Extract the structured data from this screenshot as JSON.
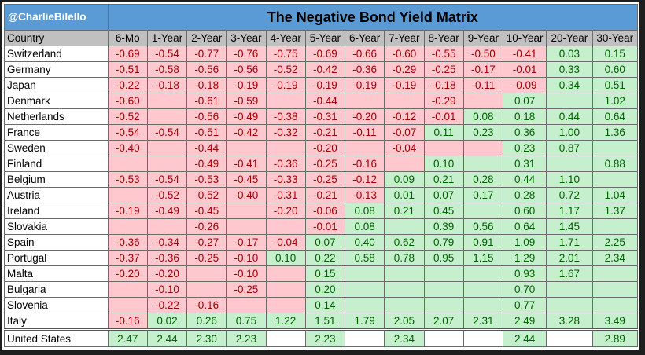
{
  "handle": "@CharlieBilello",
  "title": "The Negative Bond Yield Matrix",
  "header": [
    "Country",
    "6-Mo",
    "1-Year",
    "2-Year",
    "3-Year",
    "4-Year",
    "5-Year",
    "6-Year",
    "7-Year",
    "8-Year",
    "9-Year",
    "10-Year",
    "20-Year",
    "30-Year"
  ],
  "colors": {
    "negative_fill": "#ffc7ce",
    "negative_text": "#9c0006",
    "positive_fill": "#c6efce",
    "positive_text": "#006100",
    "title_bar": "#5b9bd5",
    "header_fill": "#c0c0c0"
  },
  "rows": [
    {
      "country": "Switzerland",
      "values": [
        -0.69,
        -0.54,
        -0.77,
        -0.76,
        -0.75,
        -0.69,
        -0.66,
        -0.6,
        -0.55,
        -0.5,
        -0.41,
        0.03,
        0.15
      ]
    },
    {
      "country": "Germany",
      "values": [
        -0.51,
        -0.58,
        -0.56,
        -0.56,
        -0.52,
        -0.42,
        -0.36,
        -0.29,
        -0.25,
        -0.17,
        -0.01,
        0.33,
        0.6
      ]
    },
    {
      "country": "Japan",
      "values": [
        -0.22,
        -0.18,
        -0.18,
        -0.19,
        -0.19,
        -0.19,
        -0.19,
        -0.19,
        -0.18,
        -0.11,
        -0.09,
        0.34,
        0.51
      ]
    },
    {
      "country": "Denmark",
      "values": [
        -0.6,
        null,
        -0.61,
        -0.59,
        null,
        -0.44,
        null,
        null,
        -0.29,
        null,
        0.07,
        null,
        1.02
      ]
    },
    {
      "country": "Netherlands",
      "values": [
        -0.52,
        null,
        -0.56,
        -0.49,
        -0.38,
        -0.31,
        -0.2,
        -0.12,
        -0.01,
        0.08,
        0.18,
        0.44,
        0.64
      ]
    },
    {
      "country": "France",
      "values": [
        -0.54,
        -0.54,
        -0.51,
        -0.42,
        -0.32,
        -0.21,
        -0.11,
        -0.07,
        0.11,
        0.23,
        0.36,
        1.0,
        1.36
      ]
    },
    {
      "country": "Sweden",
      "values": [
        -0.4,
        null,
        -0.44,
        null,
        null,
        -0.2,
        null,
        -0.04,
        null,
        null,
        0.23,
        0.87,
        null
      ]
    },
    {
      "country": "Finland",
      "values": [
        null,
        null,
        -0.49,
        -0.41,
        -0.36,
        -0.25,
        -0.16,
        null,
        0.1,
        null,
        0.31,
        null,
        0.88
      ]
    },
    {
      "country": "Belgium",
      "values": [
        -0.53,
        -0.54,
        -0.53,
        -0.45,
        -0.33,
        -0.25,
        -0.12,
        0.09,
        0.21,
        0.28,
        0.44,
        1.1,
        null
      ]
    },
    {
      "country": "Austria",
      "values": [
        null,
        -0.52,
        -0.52,
        -0.4,
        -0.31,
        -0.21,
        -0.13,
        0.01,
        0.07,
        0.17,
        0.28,
        0.72,
        1.04
      ]
    },
    {
      "country": "Ireland",
      "values": [
        -0.19,
        -0.49,
        -0.45,
        null,
        -0.2,
        -0.06,
        0.08,
        0.21,
        0.45,
        null,
        0.6,
        1.17,
        1.37
      ]
    },
    {
      "country": "Slovakia",
      "values": [
        null,
        null,
        -0.26,
        null,
        null,
        -0.01,
        0.08,
        null,
        0.39,
        0.56,
        0.64,
        1.45,
        null
      ]
    },
    {
      "country": "Spain",
      "values": [
        -0.36,
        -0.34,
        -0.27,
        -0.17,
        -0.04,
        0.07,
        0.4,
        0.62,
        0.79,
        0.91,
        1.09,
        1.71,
        2.25
      ]
    },
    {
      "country": "Portugal",
      "values": [
        -0.37,
        -0.36,
        -0.25,
        -0.1,
        0.1,
        0.22,
        0.58,
        0.78,
        0.95,
        1.15,
        1.29,
        2.01,
        2.34
      ]
    },
    {
      "country": "Malta",
      "values": [
        -0.2,
        -0.2,
        null,
        -0.1,
        null,
        0.15,
        null,
        null,
        null,
        null,
        0.93,
        1.67,
        null
      ]
    },
    {
      "country": "Bulgaria",
      "values": [
        null,
        -0.1,
        null,
        -0.25,
        null,
        0.2,
        null,
        null,
        null,
        null,
        0.7,
        null,
        null
      ]
    },
    {
      "country": "Slovenia",
      "values": [
        null,
        -0.22,
        -0.16,
        null,
        null,
        0.14,
        null,
        null,
        null,
        null,
        0.77,
        null,
        null
      ]
    },
    {
      "country": "Italy",
      "values": [
        -0.16,
        0.02,
        0.26,
        0.75,
        1.22,
        1.51,
        1.79,
        2.05,
        2.07,
        2.31,
        2.49,
        3.28,
        3.49
      ]
    }
  ],
  "us_row": {
    "country": "United States",
    "values": [
      2.47,
      2.44,
      2.3,
      2.23,
      null,
      2.23,
      null,
      2.34,
      null,
      null,
      2.44,
      null,
      2.89
    ]
  }
}
